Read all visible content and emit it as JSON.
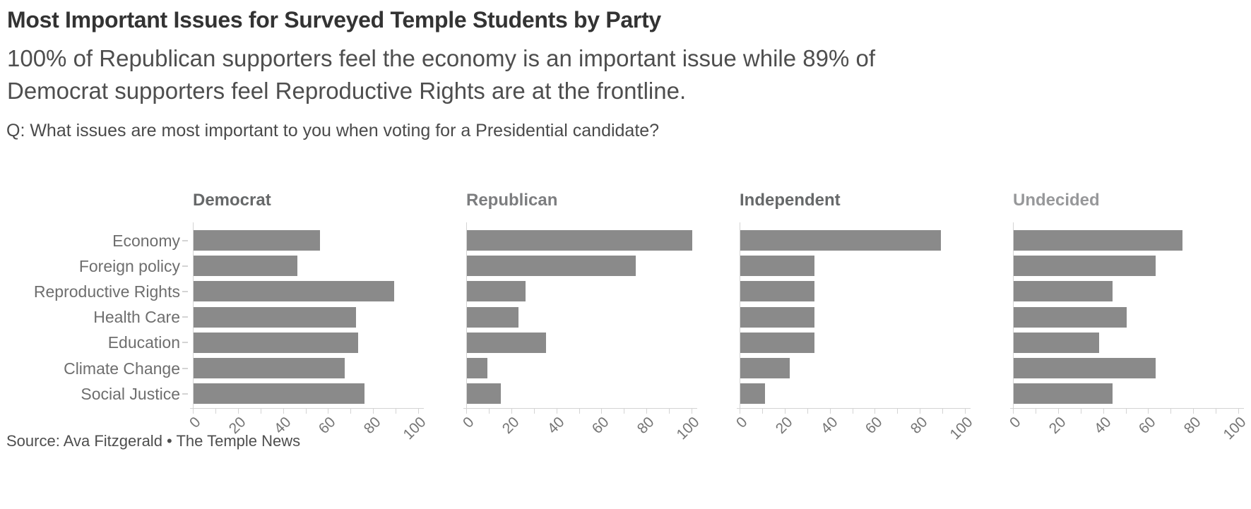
{
  "header": {
    "title": "Most Important Issues for Surveyed Temple Students by Party",
    "subtitle_lines": [
      "100% of Republican supporters feel the economy is an important issue while 89% of",
      "Democrat supporters feel Reproductive Rights are at the frontline."
    ],
    "question": "Q: What issues are most important to you when voting for a Presidential candidate?"
  },
  "footer": {
    "source": "Source: Ava Fitzgerald • The Temple News"
  },
  "chart_data": {
    "type": "bar",
    "orientation": "horizontal",
    "title": "Most Important Issues for Surveyed Temple Students by Party",
    "categories": [
      "Economy",
      "Foreign policy",
      "Reproductive Rights",
      "Health Care",
      "Education",
      "Climate Change",
      "Social Justice"
    ],
    "series": [
      {
        "name": "Democrat",
        "values": [
          56,
          46,
          89,
          72,
          73,
          67,
          76
        ],
        "title_color": "#666869"
      },
      {
        "name": "Republican",
        "values": [
          100,
          75,
          26,
          23,
          35,
          9,
          15
        ],
        "title_color": "#7c7d7f"
      },
      {
        "name": "Independent",
        "values": [
          89,
          33,
          33,
          33,
          33,
          22,
          11
        ],
        "title_color": "#666869"
      },
      {
        "name": "Undecided",
        "values": [
          75,
          63,
          44,
          50,
          38,
          63,
          44
        ],
        "title_color": "#97989a"
      }
    ],
    "xlim": [
      0,
      100
    ],
    "x_minor_ticks": [
      0,
      10,
      20,
      30,
      40,
      50,
      60,
      70,
      80,
      90,
      100
    ],
    "x_tick_labels": [
      0,
      20,
      40,
      60,
      80,
      100
    ],
    "xlabel": "",
    "ylabel": "",
    "grid": false,
    "legend_position": null,
    "bar_color": "#8a8a8a",
    "axis_color": "#d4d4d4"
  }
}
